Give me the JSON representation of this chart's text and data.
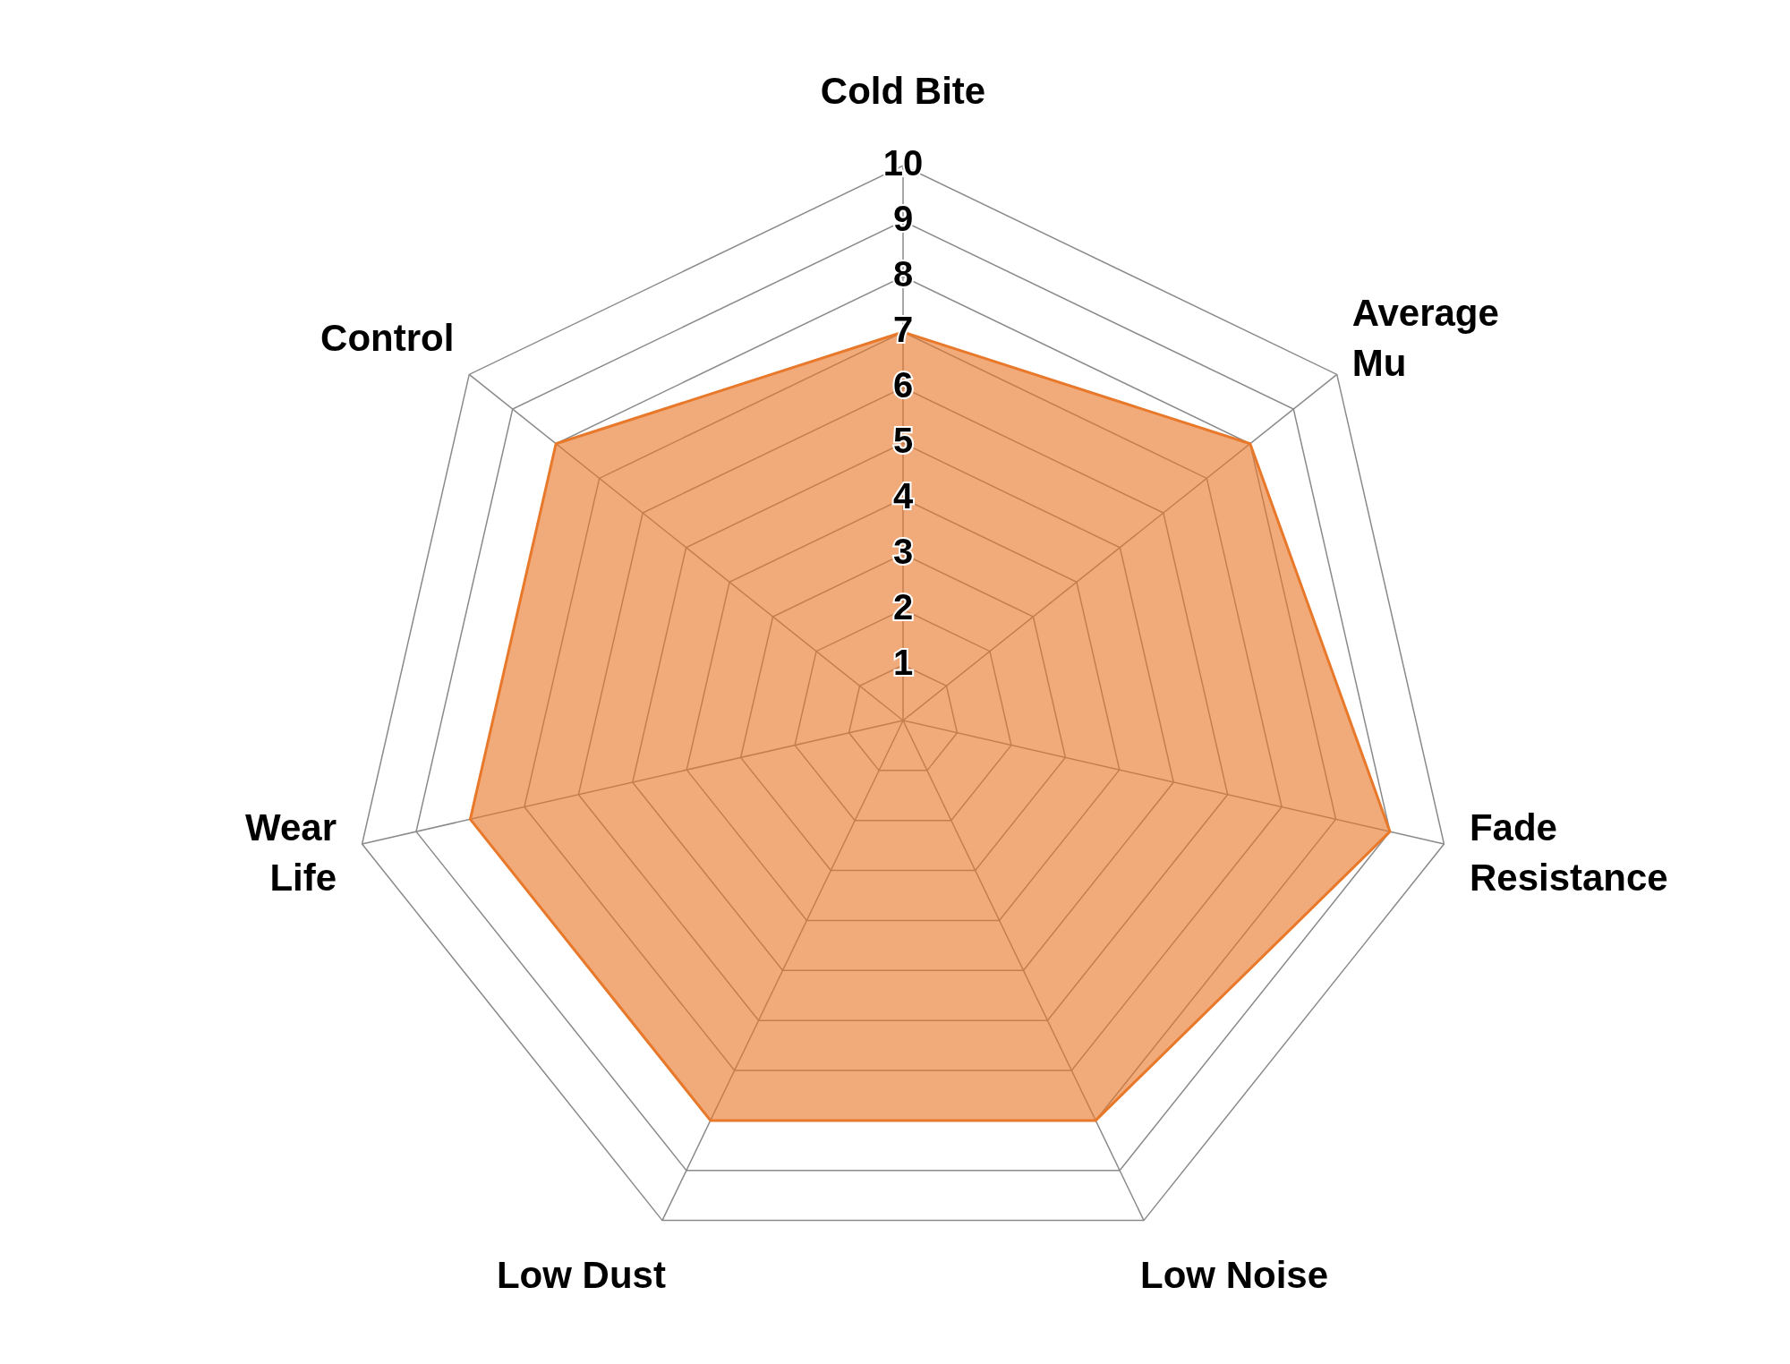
{
  "chart_data": {
    "type": "radar",
    "categories": [
      "Cold Bite",
      "Average\nMu",
      "Fade\nResistance",
      "Low Noise",
      "Low Dust",
      "Wear\nLife",
      "Control"
    ],
    "series": [
      {
        "color": "#e8782a",
        "values": [
          7,
          8,
          9,
          8,
          8,
          8,
          8
        ]
      }
    ],
    "ylim": [
      0,
      10
    ],
    "yticks": [
      1,
      2,
      3,
      4,
      5,
      6,
      7,
      8,
      9,
      10
    ],
    "grid": true
  }
}
